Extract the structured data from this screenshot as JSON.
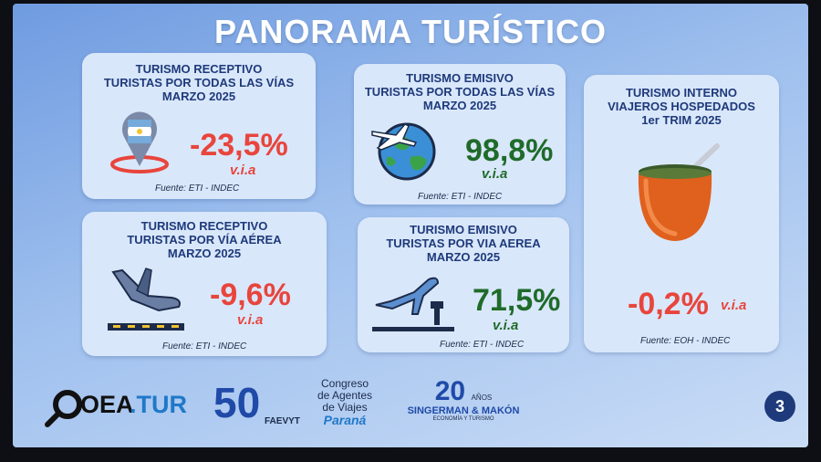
{
  "title": "PANORAMA TURÍSTICO",
  "colors": {
    "negative": "#e8453c",
    "positive": "#1f6b2a",
    "heading": "#1e3a7b"
  },
  "cards": [
    {
      "heading": [
        "TURISMO RECEPTIVO",
        "TURISTAS POR TODAS LAS VÍAS",
        "MARZO 2025"
      ],
      "value": "-23,5%",
      "unit": "v.i.a",
      "source": "Fuente: ETI - INDEC",
      "icon": "argentina-location-pin-icon"
    },
    {
      "heading": [
        "TURISMO EMISIVO",
        "TURISTAS POR TODAS LAS VÍAS",
        "MARZO 2025"
      ],
      "value": "98,8%",
      "unit": "v.i.a",
      "source": "Fuente: ETI - INDEC",
      "icon": "globe-airplane-icon"
    },
    {
      "heading": [
        "TURISMO INTERNO",
        "VIAJEROS HOSPEDADOS",
        "1er TRIM 2025"
      ],
      "value": "-0,2%",
      "unit": "v.i.a",
      "source": "Fuente: EOH - INDEC",
      "icon": "mate-gourd-icon"
    },
    {
      "heading": [
        "TURISMO RECEPTIVO",
        "TURISTAS POR VÍA AÉREA",
        "MARZO 2025"
      ],
      "value": "-9,6%",
      "unit": "v.i.a",
      "source": "Fuente: ETI - INDEC",
      "icon": "landing-airplane-icon"
    },
    {
      "heading": [
        "TURISMO EMISIVO",
        "TURISTAS POR VIA AEREA",
        "MARZO 2025"
      ],
      "value": "71,5%",
      "unit": "v.i.a",
      "source": "Fuente: ETI - INDEC",
      "icon": "takeoff-airplane-icon"
    }
  ],
  "footer": {
    "oea": {
      "prefix": "OEA",
      "suffix": ".TUR"
    },
    "faevyt": {
      "number": "50",
      "name": "FAEVYT"
    },
    "congreso": {
      "line1": "Congreso",
      "line2": "de Agentes",
      "line3": "de Viajes",
      "city": "Paraná"
    },
    "singerman": {
      "number": "20",
      "anos": "AÑOS",
      "name": "SINGERMAN & MAKÓN",
      "tagline": "ECONOMÍA Y TURISMO"
    }
  },
  "page_number": "3"
}
